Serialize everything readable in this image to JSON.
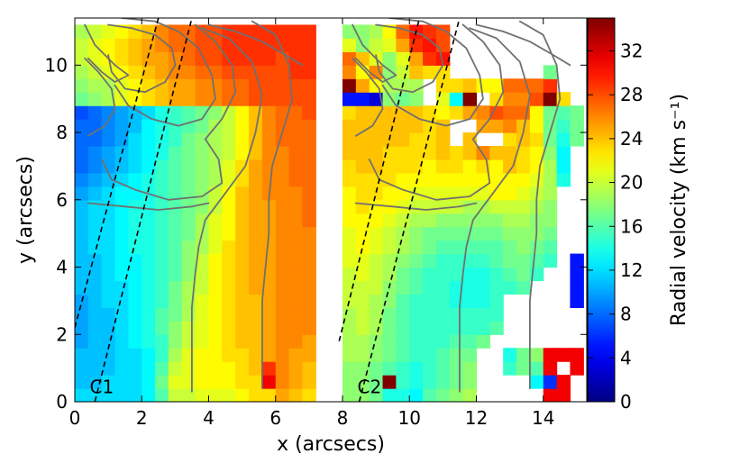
{
  "chart_data": {
    "type": "heatmap",
    "xlabel": "x (arcsecs)",
    "ylabel": "y (arcsecs)",
    "xlim": [
      0,
      15.3
    ],
    "ylim": [
      0,
      11.4
    ],
    "xticks": [
      0,
      2,
      4,
      6,
      8,
      10,
      12,
      14
    ],
    "yticks": [
      0,
      2,
      4,
      6,
      8,
      10
    ],
    "pixel_size": 0.4,
    "colorbar": {
      "label": "Radial velocity (km s⁻¹)",
      "min": 0,
      "max": 35,
      "ticks": [
        0,
        4,
        8,
        12,
        16,
        20,
        24,
        28,
        32
      ]
    },
    "panels": [
      {
        "label": "C1",
        "x_range": [
          0,
          7.2
        ],
        "label_pos": [
          0.5,
          0.5
        ],
        "map_rows_bottom_to_top": [
          "12 12 12 12 12 13 16 20 20 21 21 21 22 23 23 25 24 23",
          "11 11 12 12 12 13 17 21 21 22 22 22 23 23 31 26 25 24",
          "11 11 11 12 12 13 16 20 21 22 22 22 23 24 29 26 25 24",
          "11 11 11 12 12 13 15 19 21 22 22 23 23 24 25 26 25 25",
          "10 11 11 12 13 14 15 18 20 21 22 23 24 24 25 26 26 25",
          "10 11 11 12 13 14 16 18 20 21 22 23 24 24 25 26 26 26",
          "10 11 11 12 13 14 16 17 19 21 22 23 24 24 25 26 26 26",
          "10 11 12 12 13 14 15 17 19 21 22 23 24 24 25 26 26 26",
          "11 11 12 12 13 14 15 17 19 20 22 23 24 25 25 26 26 26",
          "11 11 12 13 13 14 15 16 18 20 22 23 24 25 25 26 26 26",
          "11 11 12 13 13 14 15 16 18 20 22 23 24 25 25 26 26 26",
          "11 12 12 13 14 14 15 16 18 19 21 23 24 25 25 26 26 26",
          "11 12 12 13 14 14 15 16 17 19 21 22 24 25 25 26 26 26",
          "11 12 12 13 14 14 15 16 17 19 21 22 24 25 25 26 26 27",
          "11 12 12 13 14 14 15 16 17 18 20 22 24 25 25 26 26 27",
          "10 11 12 13 13 14 15 16 17 18 20 22 24 25 26 26 26 27",
          "9 10 11 12 13 14 15 16 17 18 19 21 23 25 26 26 27 27",
          "8 9 10 11 12 13 15 16 17 18 19 21 23 25 26 26 27 27",
          "8 9 10 11 12 13 14 16 17 18 19 20 22 24 26 26 27 27",
          "8 8 9 10 12 13 14 15 17 18 19 20 22 24 26 27 27 27",
          "8 8 9 10 11 13 14 15 16 17 19 20 22 24 26 27 27 27",
          "7 8 9 10 11 12 14 15 16 17 18 20 22 24 26 27 27 28",
          "17 18 19 21 22 23 24 25 25 26 26 27 27 28 28 28 28 28",
          "18 19 19 21 22 23 24 25 25 26 26 27 27 28 28 28 28 28",
          "19 20 21 22 23 24 25 26 26 27 27 28 28 28 28 28 29 29",
          "20 21 22 23 24 25 25 26 27 28 28 29 29 29 29 28 29 29",
          "20 21 22 23 24 25 26 27 27 28 28 29 29 29 29 29 29 29",
          "19 20 21 22 23 24 26 27 27 28 28 29 29 29 29 29 29 29"
        ]
      },
      {
        "label": "C2",
        "x_range": [
          8,
          15.2
        ],
        "label_pos": [
          8.5,
          0.5
        ],
        "map_rows_bottom_to_top": [
          "18 18 17 14 14 13 16 17 18 19 -  -  -  -  -  31 31 -",
          "18 18 17 35 15 14 15 16 17 18 -  -  -  -  13 6  31 -",
          "18 18 17 16 15 14 15 16 17 18 -  -  15 17 16 31 -  31",
          "19 19 18 17 16 15 15 16 17 17 -  -  14 17 18 31 31 31",
          "19 19 18 17 16 15 15 15 16 16 17 -  -  -  -  -  -  -",
          "19 20 19 17 16 15 15 15 15 15 15 16 -  -  -  -  -  -",
          "19 20 19 17 16 15 15 15 15 15 15 15 -  -  -  -  -  -",
          "20 20 19 18 16 15 15 15 14 14 14 15 -  -  -  -  -  5",
          "20 20 20 18 17 16 15 15 14 14 14 15 15 16 -  -  -  5",
          "20 21 20 19 17 16 15 15 15 14 14 15 16 17 15 -  -  5",
          "21 21 20 19 18 17 16 15 15 15 15 16 17 17 16 15 -  5",
          "21 22 21 20 19 18 17 16 16 16 16 16 17 18 17 16 -  -",
          "21 22 21 20 19 18 17 17 17 17 17 17 18 18 18 17 -  -",
          "22 22 22 21 20 19 19 18 18 18 18 18 19 19 18 18 -  -",
          "22 23 22 22 21 20 20 20 20 19 19 20 20 20 19 18 -  -",
          "22 23 23 22 22 21 21 21 21 21 21 22 22 21 20 19 -  -",
          "23 23 23 23 22 22 22 22 22 22 22 22 22 22 21 19 14 -",
          "23 24 24 23 23 23 22 23 23 22 23 22 24 23 22 19 13 -",
          "24 24 24 23 23 23 23 24 23 24 26 24 24 23 22 18 13 -",
          "24 24 24 24 24 23 23 24 -  24 -  -  23 24 23 17 14 17",
          "24 24 24 24 24 24 23 24 -  -  25 25 26 24 22 17 15 17",
          "23 24 24 24 24 24 23 22 23 25 26 28 27 27 22 17 16 17",
          "5  5  3  18 17 18 -  21 13 35 -  23 26 26 28 35 23 -",
          "35 25 22 19 19 19 -  23 23 24 22 22 27 27 27 29 -  -",
          "26 22 26 18 20 24 23 23 -  -  -  -  -  -  -  17 -  -",
          "27 24 21 18 21 25 29 30 -  -  -  -  -  -  -  -  -  -",
          "21 18 20 21 25 29 30 28 -  -  -  -  -  -  -  -  -  -",
          "18 18 19 22 27 30 29 28 -  -  -  -  -  -  -  -  -  -"
        ]
      }
    ],
    "dashed_lines": [
      {
        "from": [
          0.0,
          2.2
        ],
        "to": [
          2.5,
          11.4
        ]
      },
      {
        "from": [
          0.6,
          0.0
        ],
        "to": [
          3.5,
          11.4
        ]
      },
      {
        "from": [
          7.9,
          1.8
        ],
        "to": [
          10.3,
          11.4
        ]
      },
      {
        "from": [
          8.5,
          0.0
        ],
        "to": [
          11.5,
          11.4
        ]
      }
    ],
    "contours": [
      [
        [
          1.0,
          11.2
        ],
        [
          1.7,
          11.1
        ],
        [
          2.4,
          10.9
        ],
        [
          2.9,
          10.5
        ],
        [
          3.0,
          10.0
        ],
        [
          2.7,
          9.5
        ],
        [
          2.1,
          9.2
        ],
        [
          1.5,
          9.3
        ],
        [
          1.1,
          9.8
        ],
        [
          1.0,
          10.3
        ]
      ],
      [
        [
          0.3,
          11.2
        ],
        [
          0.6,
          10.6
        ],
        [
          1.2,
          10.0
        ],
        [
          1.6,
          9.7
        ],
        [
          1.2,
          9.5
        ],
        [
          0.8,
          9.8
        ],
        [
          0.4,
          10.2
        ]
      ],
      [
        [
          1.4,
          11.4
        ],
        [
          2.4,
          11.3
        ],
        [
          3.1,
          11.0
        ],
        [
          3.7,
          10.5
        ],
        [
          4.1,
          9.7
        ],
        [
          4.2,
          9.0
        ],
        [
          3.8,
          8.4
        ],
        [
          3.1,
          8.2
        ],
        [
          2.3,
          8.4
        ],
        [
          1.6,
          8.8
        ],
        [
          1.2,
          9.4
        ]
      ],
      [
        [
          0.3,
          10.2
        ],
        [
          0.7,
          9.8
        ],
        [
          1.1,
          9.3
        ],
        [
          1.2,
          8.7
        ],
        [
          0.9,
          8.2
        ],
        [
          0.4,
          7.9
        ]
      ],
      [
        [
          3.6,
          11.2
        ],
        [
          4.2,
          10.7
        ],
        [
          4.7,
          10.0
        ],
        [
          4.8,
          9.2
        ],
        [
          4.4,
          8.4
        ],
        [
          3.9,
          7.8
        ],
        [
          4.3,
          7.2
        ],
        [
          4.4,
          6.5
        ],
        [
          3.8,
          6.1
        ],
        [
          2.8,
          6.0
        ],
        [
          1.8,
          6.3
        ],
        [
          1.1,
          6.6
        ],
        [
          0.8,
          7.2
        ]
      ],
      [
        [
          0.4,
          5.9
        ],
        [
          1.5,
          5.8
        ],
        [
          2.5,
          5.7
        ],
        [
          3.5,
          5.8
        ],
        [
          4.0,
          5.9
        ]
      ],
      [
        [
          3.8,
          11.1
        ],
        [
          4.6,
          10.8
        ],
        [
          5.3,
          10.1
        ],
        [
          5.6,
          9.1
        ],
        [
          5.4,
          8.0
        ],
        [
          5.1,
          7.0
        ],
        [
          4.5,
          6.2
        ],
        [
          3.9,
          5.4
        ],
        [
          3.7,
          4.6
        ],
        [
          3.6,
          3.8
        ],
        [
          3.5,
          2.8
        ],
        [
          3.5,
          1.6
        ],
        [
          3.5,
          0.3
        ]
      ],
      [
        [
          5.3,
          11.3
        ],
        [
          6.0,
          10.9
        ],
        [
          6.4,
          10.0
        ],
        [
          6.5,
          9.0
        ],
        [
          6.2,
          8.0
        ],
        [
          5.9,
          7.0
        ],
        [
          5.8,
          6.0
        ],
        [
          5.8,
          5.0
        ],
        [
          5.7,
          4.0
        ],
        [
          5.6,
          3.0
        ],
        [
          5.6,
          1.8
        ],
        [
          5.6,
          0.4
        ]
      ],
      [
        [
          4.0,
          11.2
        ],
        [
          4.8,
          11.0
        ],
        [
          5.6,
          10.7
        ],
        [
          6.3,
          10.3
        ],
        [
          6.8,
          10.0
        ]
      ],
      [
        [
          9.0,
          11.2
        ],
        [
          9.7,
          11.1
        ],
        [
          10.4,
          10.9
        ],
        [
          10.9,
          10.5
        ],
        [
          11.0,
          10.0
        ],
        [
          10.7,
          9.5
        ],
        [
          10.1,
          9.2
        ],
        [
          9.5,
          9.3
        ],
        [
          9.1,
          9.8
        ],
        [
          9.0,
          10.3
        ]
      ],
      [
        [
          8.3,
          11.2
        ],
        [
          8.6,
          10.6
        ],
        [
          9.2,
          10.0
        ],
        [
          9.6,
          9.7
        ],
        [
          9.2,
          9.5
        ],
        [
          8.8,
          9.8
        ],
        [
          8.4,
          10.2
        ]
      ],
      [
        [
          9.4,
          11.4
        ],
        [
          10.4,
          11.3
        ],
        [
          11.1,
          11.0
        ],
        [
          11.7,
          10.5
        ],
        [
          12.1,
          9.7
        ],
        [
          12.2,
          9.0
        ],
        [
          11.8,
          8.4
        ],
        [
          11.1,
          8.2
        ],
        [
          10.3,
          8.4
        ],
        [
          9.6,
          8.8
        ],
        [
          9.2,
          9.4
        ]
      ],
      [
        [
          8.3,
          10.2
        ],
        [
          8.7,
          9.8
        ],
        [
          9.1,
          9.3
        ],
        [
          9.2,
          8.7
        ],
        [
          8.9,
          8.2
        ],
        [
          8.4,
          7.9
        ]
      ],
      [
        [
          11.6,
          11.2
        ],
        [
          12.2,
          10.7
        ],
        [
          12.7,
          10.0
        ],
        [
          12.8,
          9.2
        ],
        [
          12.4,
          8.4
        ],
        [
          11.9,
          7.8
        ],
        [
          12.3,
          7.2
        ],
        [
          12.4,
          6.5
        ],
        [
          11.8,
          6.1
        ],
        [
          10.8,
          6.0
        ],
        [
          9.8,
          6.3
        ],
        [
          9.1,
          6.6
        ],
        [
          8.8,
          7.2
        ]
      ],
      [
        [
          8.4,
          5.9
        ],
        [
          9.5,
          5.8
        ],
        [
          10.5,
          5.7
        ],
        [
          11.5,
          5.8
        ],
        [
          12.0,
          5.9
        ]
      ],
      [
        [
          11.8,
          11.1
        ],
        [
          12.6,
          10.8
        ],
        [
          13.3,
          10.1
        ],
        [
          13.6,
          9.1
        ],
        [
          13.4,
          8.0
        ],
        [
          13.1,
          7.0
        ],
        [
          12.5,
          6.2
        ],
        [
          11.9,
          5.4
        ],
        [
          11.7,
          4.6
        ],
        [
          11.6,
          3.8
        ],
        [
          11.5,
          2.8
        ],
        [
          11.5,
          1.6
        ],
        [
          11.5,
          0.3
        ]
      ],
      [
        [
          13.3,
          11.3
        ],
        [
          14.0,
          10.9
        ],
        [
          14.4,
          10.0
        ],
        [
          14.5,
          9.0
        ],
        [
          14.2,
          8.0
        ],
        [
          13.9,
          7.0
        ],
        [
          13.8,
          6.0
        ],
        [
          13.8,
          5.0
        ],
        [
          13.7,
          4.0
        ],
        [
          13.6,
          3.0
        ],
        [
          13.6,
          1.8
        ],
        [
          13.6,
          0.4
        ]
      ],
      [
        [
          12.0,
          11.2
        ],
        [
          12.8,
          11.0
        ],
        [
          13.6,
          10.7
        ],
        [
          14.3,
          10.3
        ],
        [
          14.8,
          10.0
        ]
      ]
    ]
  }
}
